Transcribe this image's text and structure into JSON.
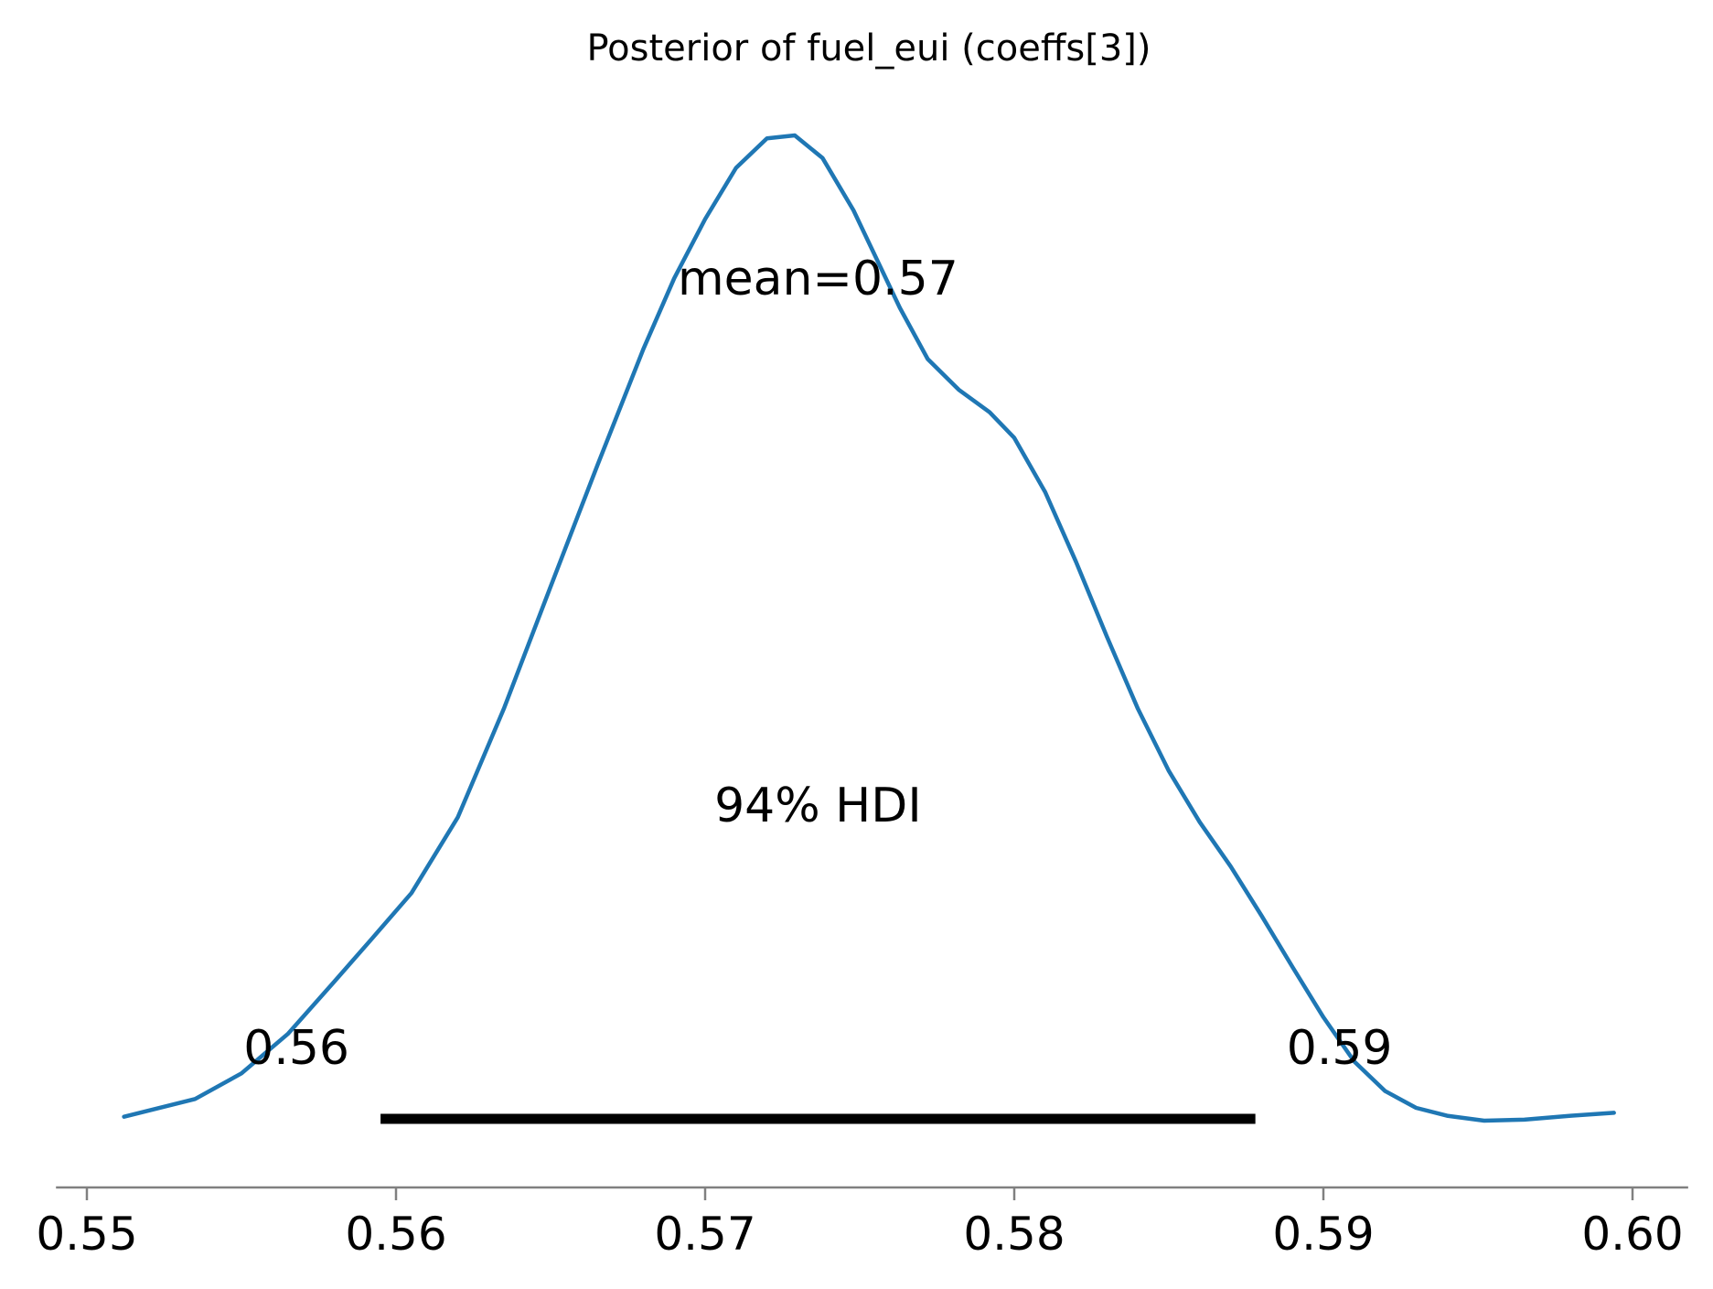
{
  "chart_data": {
    "type": "line",
    "title": "Posterior of fuel_eui (coeffs[3])",
    "xlabel": "",
    "ylabel": "",
    "xlim": [
      0.549,
      0.6018
    ],
    "xticks": [
      "0.55",
      "0.56",
      "0.57",
      "0.58",
      "0.59",
      "0.60"
    ],
    "xtick_values": [
      0.55,
      0.56,
      0.57,
      0.58,
      0.59,
      0.6
    ],
    "grid": false,
    "series": [
      {
        "color": "#1f77b4",
        "x": [
          0.5512,
          0.5535,
          0.555,
          0.5565,
          0.558,
          0.5592,
          0.5605,
          0.562,
          0.5635,
          0.565,
          0.5665,
          0.568,
          0.569,
          0.57,
          0.571,
          0.572,
          0.5729,
          0.5738,
          0.5748,
          0.5756,
          0.5763,
          0.5772,
          0.5782,
          0.5792,
          0.58,
          0.581,
          0.582,
          0.583,
          0.584,
          0.585,
          0.586,
          0.587,
          0.588,
          0.589,
          0.59,
          0.591,
          0.592,
          0.593,
          0.594,
          0.5952,
          0.5965,
          0.598,
          0.5994
        ],
        "density": [
          0.004,
          0.022,
          0.048,
          0.088,
          0.141,
          0.184,
          0.231,
          0.308,
          0.419,
          0.542,
          0.664,
          0.783,
          0.855,
          0.915,
          0.967,
          0.997,
          1.0,
          0.977,
          0.924,
          0.871,
          0.825,
          0.773,
          0.742,
          0.719,
          0.693,
          0.638,
          0.567,
          0.491,
          0.418,
          0.355,
          0.303,
          0.258,
          0.208,
          0.156,
          0.105,
          0.06,
          0.03,
          0.013,
          0.005,
          0.0,
          0.001,
          0.005,
          0.008
        ]
      }
    ],
    "mean_label": "mean=0.57",
    "hdi": {
      "label": "94% HDI",
      "low": 0.5595,
      "high": 0.5878,
      "low_label": "0.56",
      "high_label": "0.59"
    }
  }
}
